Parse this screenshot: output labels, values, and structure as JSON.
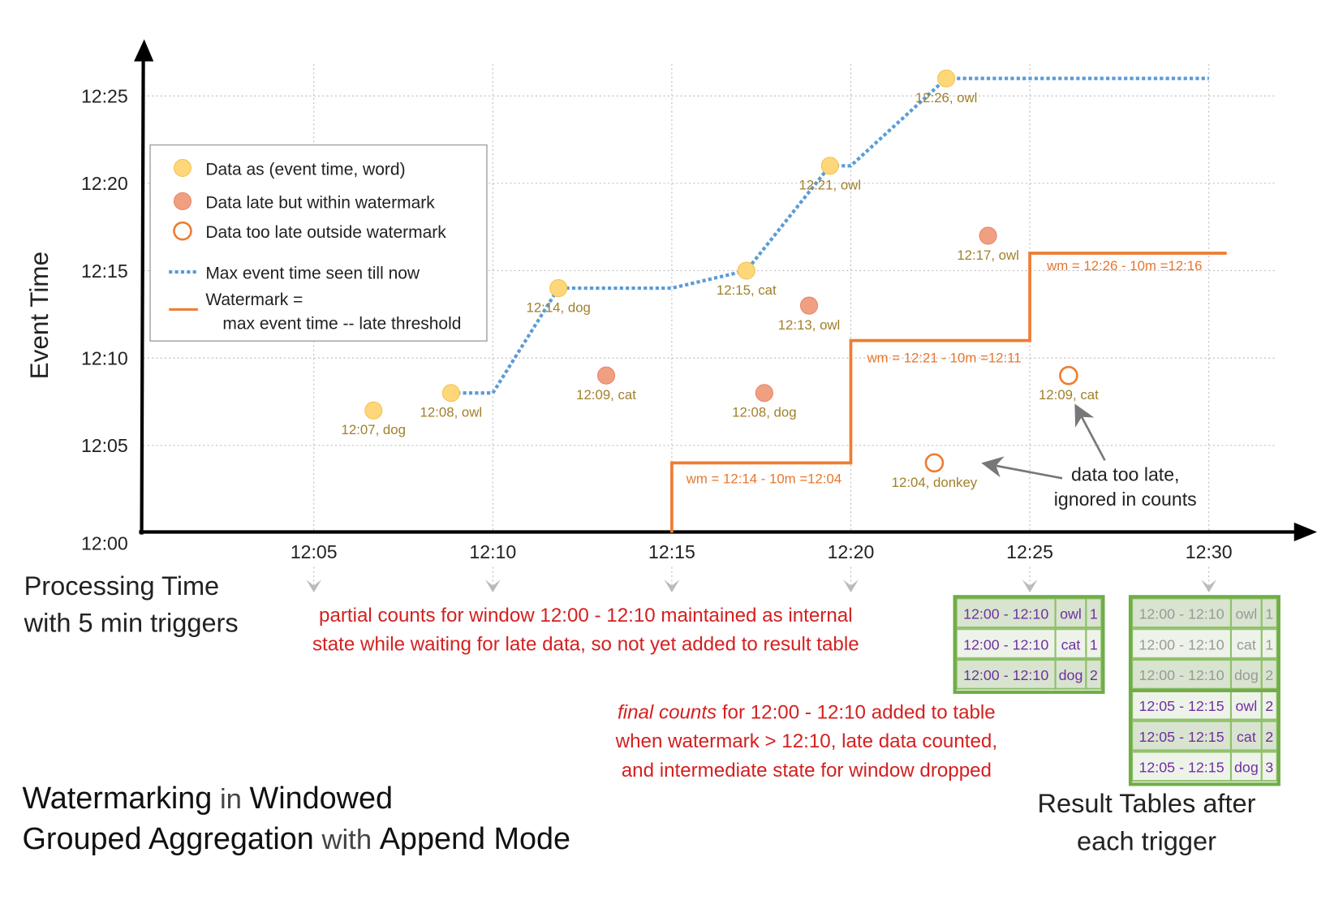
{
  "chart_data": {
    "type": "scatter",
    "title": "",
    "xlabel": "Processing Time",
    "xlabel_line2": "with 5 min triggers",
    "ylabel": "Event Time",
    "x_ticks": [
      "12:05",
      "12:10",
      "12:15",
      "12:20",
      "12:25",
      "12:30"
    ],
    "y_ticks": [
      "12:00",
      "12:05",
      "12:10",
      "12:15",
      "12:20",
      "12:25"
    ],
    "xlim": [
      "12:00",
      "12:32"
    ],
    "ylim": [
      "12:00",
      "12:28"
    ],
    "grid": true,
    "legend_placement": "top-left",
    "colors": {
      "on_time": "#fdd77a",
      "late": "#f0a080",
      "too_late": "#ee7d31",
      "max_event": "#5b9bd5",
      "watermark": "#ee7d31"
    },
    "legend": [
      {
        "label": "Data as (event time, word)",
        "kind": "on_time"
      },
      {
        "label": "Data late but within watermark",
        "kind": "late"
      },
      {
        "label": "Data too late outside watermark",
        "kind": "too_late"
      },
      {
        "label": "Max event time seen till now",
        "kind": "max_event"
      },
      {
        "label": "Watermark =",
        "label2": "max event time -- late threshold",
        "kind": "watermark"
      }
    ],
    "points": [
      {
        "processing": "12:06:40",
        "event": "12:07",
        "word": "dog",
        "kind": "on_time",
        "label": "12:07, dog"
      },
      {
        "processing": "12:08:50",
        "event": "12:08",
        "word": "owl",
        "kind": "on_time",
        "label": "12:08, owl"
      },
      {
        "processing": "12:11:50",
        "event": "12:14",
        "word": "dog",
        "kind": "on_time",
        "label": "12:14, dog"
      },
      {
        "processing": "12:13:10",
        "event": "12:09",
        "word": "cat",
        "kind": "late",
        "label": "12:09, cat"
      },
      {
        "processing": "12:17:05",
        "event": "12:15",
        "word": "cat",
        "kind": "on_time",
        "label": "12:15, cat"
      },
      {
        "processing": "12:17:35",
        "event": "12:08",
        "word": "dog",
        "kind": "late",
        "label": "12:08, dog"
      },
      {
        "processing": "12:18:50",
        "event": "12:13",
        "word": "owl",
        "kind": "late",
        "label": "12:13, owl"
      },
      {
        "processing": "12:19:25",
        "event": "12:21",
        "word": "owl",
        "kind": "on_time",
        "label": "12:21, owl"
      },
      {
        "processing": "12:22:20",
        "event": "12:04",
        "word": "donkey",
        "kind": "too_late",
        "label": "12:04, donkey"
      },
      {
        "processing": "12:22:40",
        "event": "12:26",
        "word": "owl",
        "kind": "on_time",
        "label": "12:26, owl"
      },
      {
        "processing": "12:23:50",
        "event": "12:17",
        "word": "owl",
        "kind": "late",
        "label": "12:17, owl"
      },
      {
        "processing": "12:26:05",
        "event": "12:09",
        "word": "cat",
        "kind": "too_late",
        "label": "12:09, cat"
      }
    ],
    "max_event_line": [
      [
        "12:08:50",
        "12:08"
      ],
      [
        "12:10",
        "12:08"
      ],
      [
        "12:11:50",
        "12:14"
      ],
      [
        "12:15",
        "12:14"
      ],
      [
        "12:17:05",
        "12:15"
      ],
      [
        "12:19:25",
        "12:21"
      ],
      [
        "12:20",
        "12:21"
      ],
      [
        "12:22:40",
        "12:26"
      ],
      [
        "12:30",
        "12:26"
      ]
    ],
    "watermark_line": [
      [
        "12:15",
        "12:00"
      ],
      [
        "12:15",
        "12:04"
      ],
      [
        "12:20",
        "12:04"
      ],
      [
        "12:20",
        "12:11"
      ],
      [
        "12:25",
        "12:11"
      ],
      [
        "12:25",
        "12:16"
      ],
      [
        "12:30:30",
        "12:16"
      ]
    ],
    "watermark_labels": [
      "wm = 12:14 - 10m =12:04",
      "wm = 12:21 - 10m =12:11",
      "wm = 12:26 - 10m =12:16"
    ],
    "annotation": [
      "data too late,",
      "ignored in counts"
    ]
  },
  "notes": {
    "partial": [
      "partial counts for window 12:00 - 12:10 maintained as internal",
      "state while waiting for late data, so not yet added  to result table"
    ],
    "final_em": "final counts",
    "final": [
      " for 12:00 - 12:10 added to table",
      "when watermark > 12:10, late data counted,",
      "and intermediate state for window dropped"
    ]
  },
  "title": {
    "p1": "Watermarking",
    "p2": " in ",
    "p3": "Windowed",
    "p4": "Grouped Aggregation",
    "p5": " with ",
    "p6": "Append Mode"
  },
  "result_caption": [
    "Result Tables after",
    "each trigger"
  ],
  "tables": [
    {
      "trigger": "12:25",
      "rows": [
        {
          "window": "12:00 - 12:10",
          "word": "owl",
          "count": "1",
          "state": "new"
        },
        {
          "window": "12:00 - 12:10",
          "word": "cat",
          "count": "1",
          "state": "new"
        },
        {
          "window": "12:00 - 12:10",
          "word": "dog",
          "count": "2",
          "state": "new"
        }
      ]
    },
    {
      "trigger": "12:30",
      "rows": [
        {
          "window": "12:00 - 12:10",
          "word": "owl",
          "count": "1",
          "state": "old"
        },
        {
          "window": "12:00 - 12:10",
          "word": "cat",
          "count": "1",
          "state": "old"
        },
        {
          "window": "12:00 - 12:10",
          "word": "dog",
          "count": "2",
          "state": "old"
        },
        {
          "window": "12:05 - 12:15",
          "word": "owl",
          "count": "2",
          "state": "new"
        },
        {
          "window": "12:05 - 12:15",
          "word": "cat",
          "count": "2",
          "state": "new"
        },
        {
          "window": "12:05 - 12:15",
          "word": "dog",
          "count": "3",
          "state": "new"
        }
      ]
    }
  ]
}
